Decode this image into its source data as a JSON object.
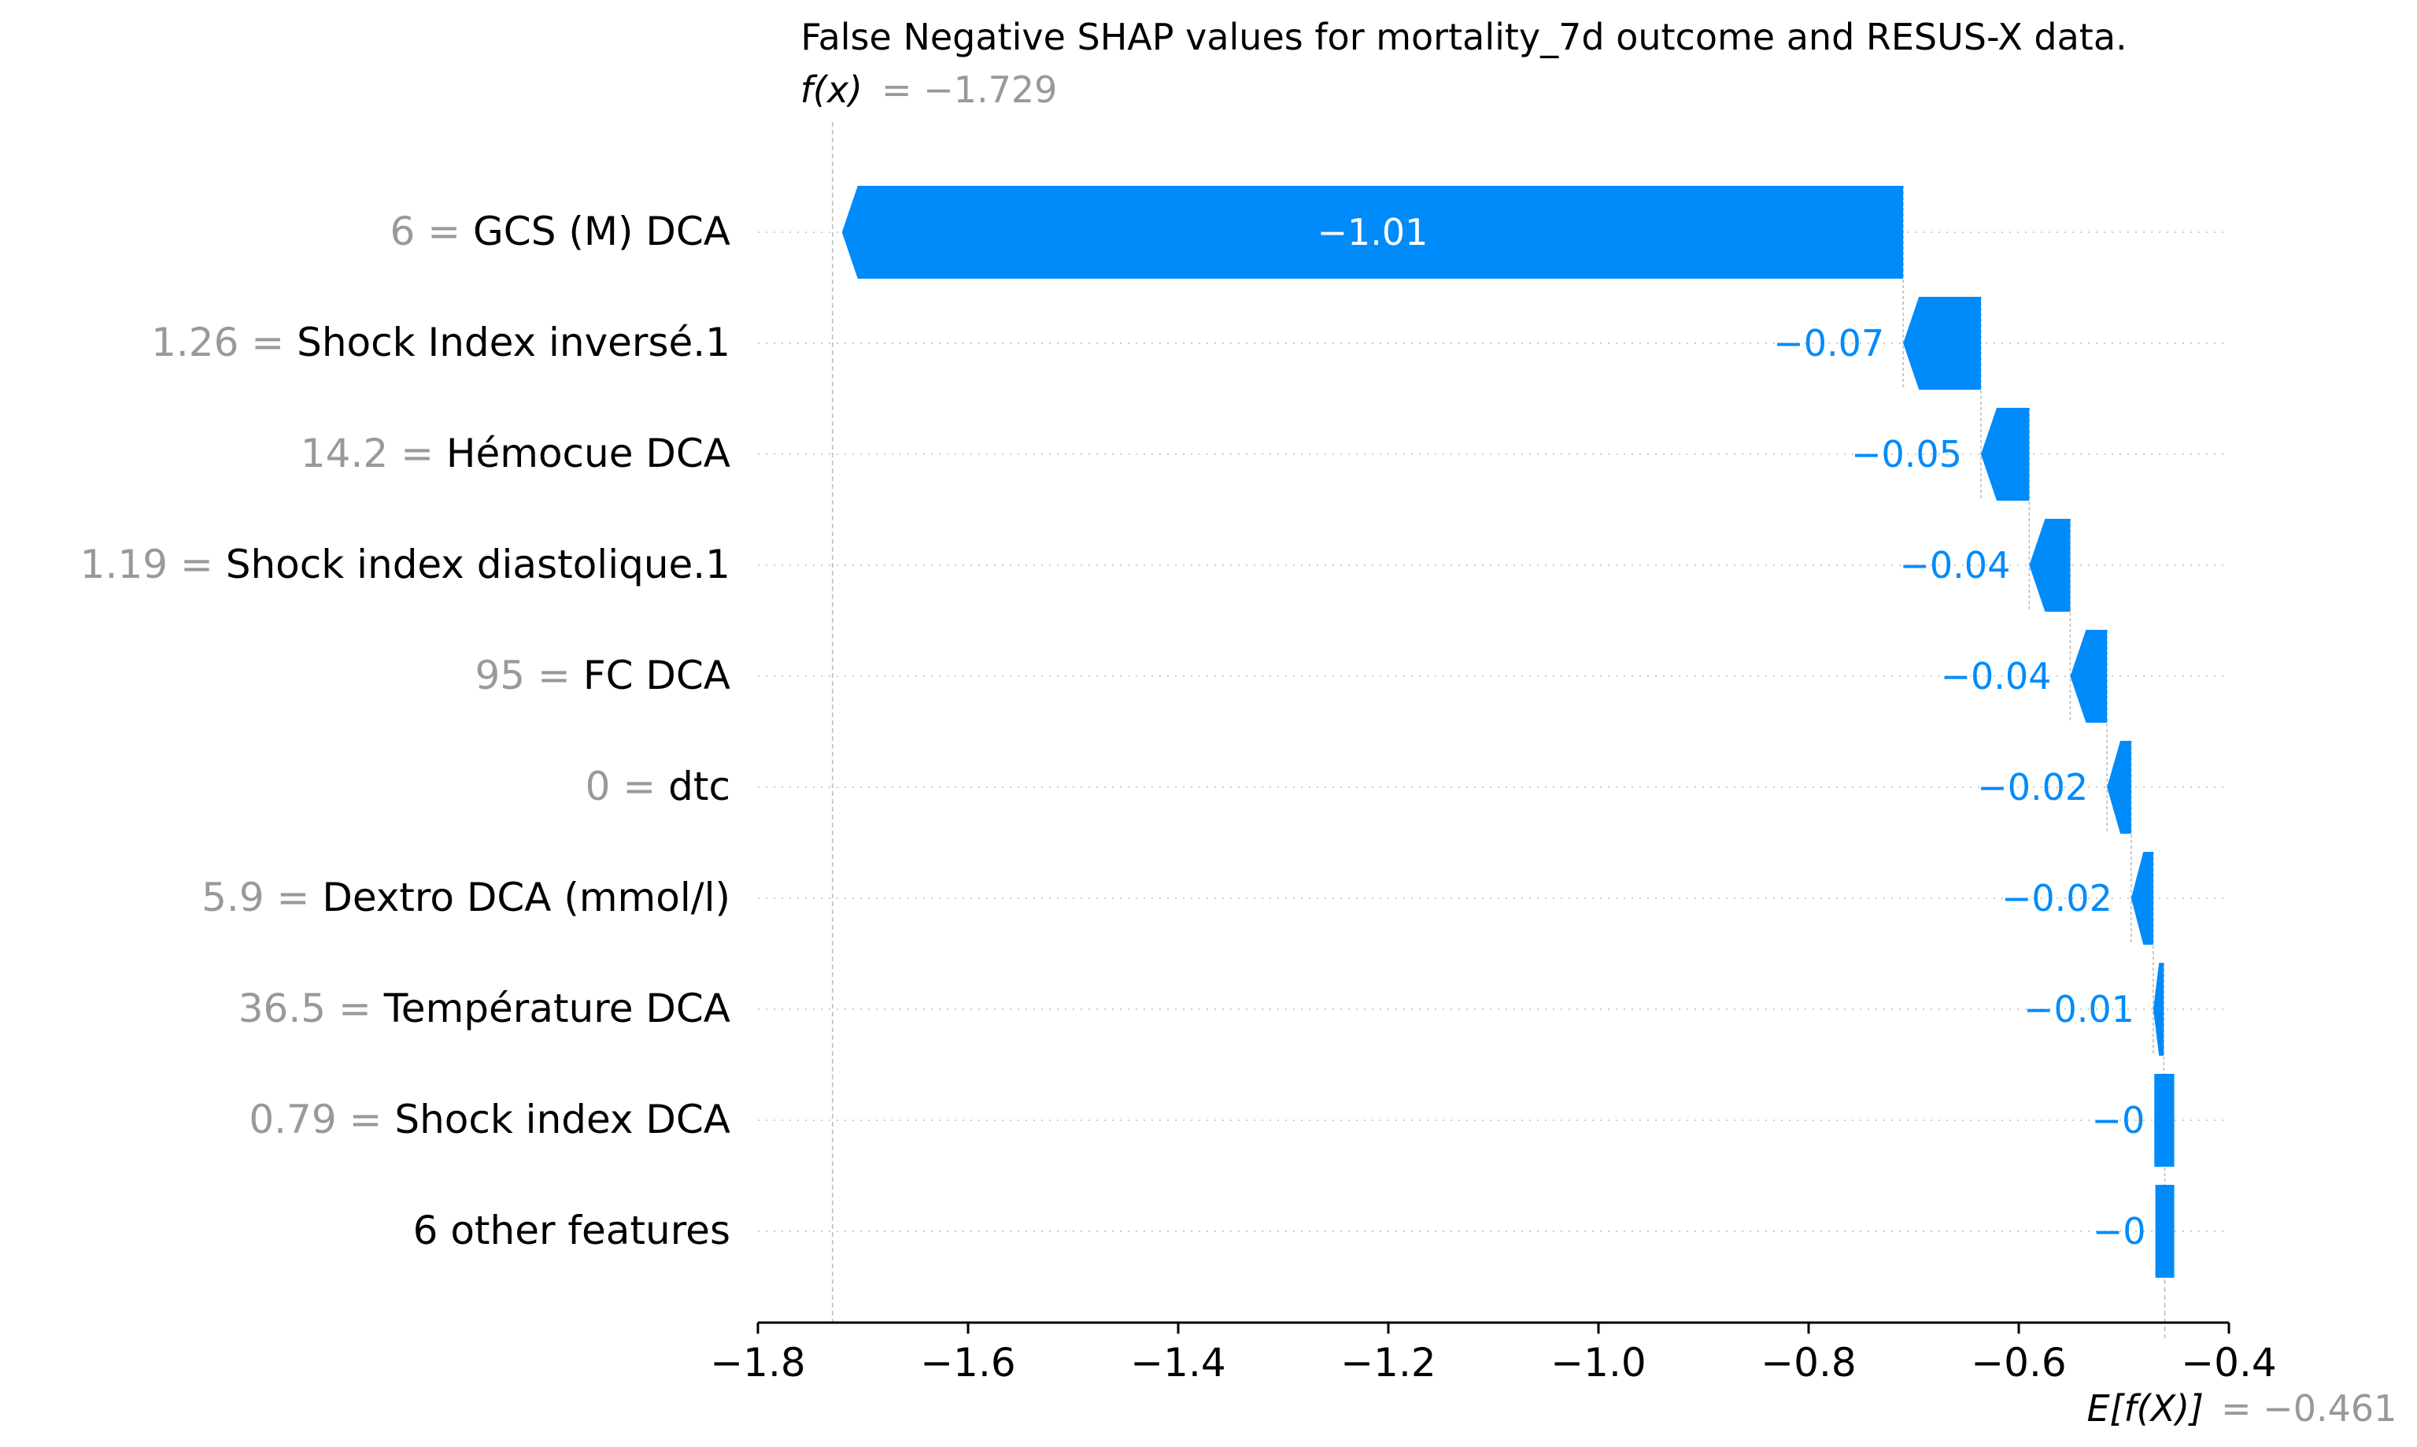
{
  "chart_data": {
    "type": "waterfall",
    "title": "False Negative SHAP values for mortality_7d outcome and RESUS-X data.",
    "fx_label": "f(x)",
    "fx_value_text": "= −1.729",
    "fx_value": -1.729,
    "ex_label": "E[f(X)]",
    "ex_value_text": "= −0.461",
    "ex_value": -0.461,
    "xlim": [
      -1.8,
      -0.4
    ],
    "x_ticks": [
      -1.8,
      -1.6,
      -1.4,
      -1.2,
      -1.0,
      -0.8,
      -0.6,
      -0.4
    ],
    "x_tick_labels": [
      "−1.8",
      "−1.6",
      "−1.4",
      "−1.2",
      "−1.0",
      "−0.8",
      "−0.6",
      "−0.4"
    ],
    "colors": {
      "negative": "#008bfb",
      "value_gray": "#999999",
      "text": "#000000"
    },
    "features": [
      {
        "value": "6 =",
        "name": "GCS (M) DCA",
        "shap": -1.01,
        "start": -0.71,
        "end": -1.72,
        "label": "−1.01",
        "label_inside": true
      },
      {
        "value": "1.26 =",
        "name": "Shock Index inversé.1",
        "shap": -0.07,
        "start": -0.636,
        "end": -0.71,
        "label": "−0.07"
      },
      {
        "value": "14.2 =",
        "name": "Hémocue DCA",
        "shap": -0.05,
        "start": -0.59,
        "end": -0.636,
        "label": "−0.05"
      },
      {
        "value": "1.19 =",
        "name": "Shock index diastolique.1",
        "shap": -0.04,
        "start": -0.551,
        "end": -0.59,
        "label": "−0.04"
      },
      {
        "value": "95 =",
        "name": "FC  DCA",
        "shap": -0.04,
        "start": -0.516,
        "end": -0.551,
        "label": "−0.04"
      },
      {
        "value": "0 =",
        "name": "dtc",
        "shap": -0.02,
        "start": -0.493,
        "end": -0.516,
        "label": "−0.02"
      },
      {
        "value": "5.9 =",
        "name": "Dextro DCA (mmol/l)",
        "shap": -0.02,
        "start": -0.472,
        "end": -0.493,
        "label": "−0.02"
      },
      {
        "value": "36.5 =",
        "name": "Température DCA",
        "shap": -0.01,
        "start": -0.462,
        "end": -0.472,
        "label": "−0.01"
      },
      {
        "value": "0.79 =",
        "name": "Shock index DCA",
        "shap": -0.0,
        "start": -0.461,
        "end": -0.462,
        "label": "−0"
      },
      {
        "value": "",
        "name": "6 other features",
        "shap": -0.0,
        "start": -0.461,
        "end": -0.461,
        "label": "−0"
      }
    ]
  }
}
